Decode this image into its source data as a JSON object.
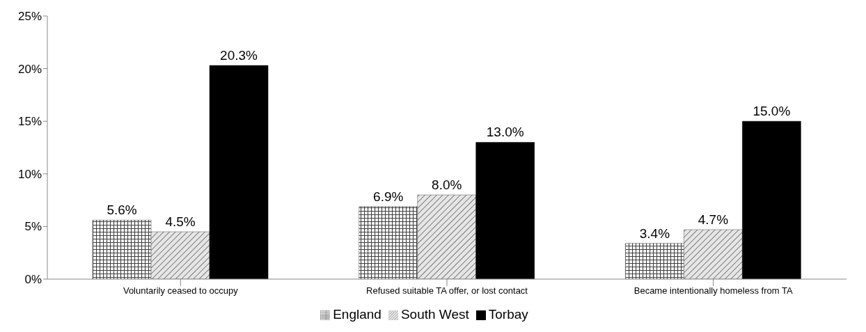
{
  "chart_data": {
    "type": "bar",
    "categories": [
      "Voluntarily ceased to occupy",
      "Refused suitable TA offer, or lost contact",
      "Became intentionally homeless from TA"
    ],
    "series": [
      {
        "name": "England",
        "color": "#404040",
        "values": [
          5.6,
          6.9,
          3.4
        ],
        "value_labels": [
          "5.6%",
          "6.9%",
          "3.4%"
        ]
      },
      {
        "name": "South West",
        "color": "#595959",
        "values": [
          4.5,
          8.0,
          4.7
        ],
        "value_labels": [
          "4.5%",
          "8.0%",
          "4.7%"
        ]
      },
      {
        "name": "Torbay",
        "color": "#000000",
        "values": [
          20.3,
          13.0,
          15.0
        ],
        "value_labels": [
          "20.3%",
          "13.0%",
          "15.0%"
        ]
      }
    ],
    "ylim": [
      0,
      25
    ],
    "yticks": [
      {
        "value": 0,
        "label": "0%"
      },
      {
        "value": 5,
        "label": "5%"
      },
      {
        "value": 10,
        "label": "10%"
      },
      {
        "value": 15,
        "label": "15%"
      },
      {
        "value": 20,
        "label": "20%"
      },
      {
        "value": 25,
        "label": "25%"
      }
    ],
    "grid": false,
    "legend": "bottom"
  }
}
